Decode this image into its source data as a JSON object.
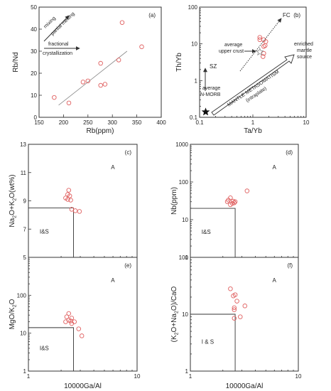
{
  "figure": {
    "font_note": ""
  },
  "chart_data": [
    {
      "id": "a",
      "type": "scatter",
      "panel_label": "(a)",
      "xlabel": "Rb(ppm)",
      "ylabel": "Rb/Nd",
      "xlim": [
        150,
        400
      ],
      "ylim": [
        0,
        50
      ],
      "xscale": "linear",
      "yscale": "linear",
      "xticks": [
        150,
        200,
        250,
        300,
        350,
        400
      ],
      "yticks": [
        0,
        10,
        20,
        30,
        40,
        50
      ],
      "points": [
        {
          "x": 181,
          "y": 9
        },
        {
          "x": 211,
          "y": 6.5
        },
        {
          "x": 240,
          "y": 16
        },
        {
          "x": 250,
          "y": 16.5
        },
        {
          "x": 276,
          "y": 24.5
        },
        {
          "x": 276,
          "y": 14.5
        },
        {
          "x": 285,
          "y": 15
        },
        {
          "x": 313,
          "y": 26
        },
        {
          "x": 320,
          "y": 43
        },
        {
          "x": 360,
          "y": 32
        }
      ],
      "trendline": {
        "x": [
          190,
          330
        ],
        "y": [
          5.5,
          30
        ]
      },
      "annotations": [
        "mixing",
        "partial melting",
        "fractional",
        "crystallization"
      ],
      "grid": false
    },
    {
      "id": "b",
      "type": "scatter",
      "panel_label": "(b)",
      "xlabel": "Ta/Yb",
      "ylabel": "Th/Yb",
      "xlim": [
        0.1,
        10
      ],
      "ylim": [
        0.1,
        100
      ],
      "xscale": "log",
      "yscale": "log",
      "xticks": [
        0.1,
        1,
        10
      ],
      "yticks": [
        0.1,
        1,
        10,
        100
      ],
      "points": [
        {
          "x": 1.35,
          "y": 15
        },
        {
          "x": 1.35,
          "y": 13
        },
        {
          "x": 1.6,
          "y": 13
        },
        {
          "x": 1.75,
          "y": 11.5
        },
        {
          "x": 1.7,
          "y": 9
        },
        {
          "x": 1.6,
          "y": 8.5
        },
        {
          "x": 1.6,
          "y": 5.5
        },
        {
          "x": 1.55,
          "y": 4.5
        }
      ],
      "reference_points": [
        {
          "name": "average upper crust",
          "x": 1.35,
          "y": 6.0,
          "symbol": "open-star"
        },
        {
          "name": "average N-MORB",
          "x": 0.13,
          "y": 0.14,
          "symbol": "filled-star"
        }
      ],
      "annotations": [
        "FC",
        "average",
        "upper crust",
        "enriched",
        "mantle",
        "source",
        "SZ",
        "average",
        "N-MORB",
        "MANTLE METASOMATISM",
        "(intraplate)"
      ],
      "grid": false
    },
    {
      "id": "c",
      "type": "scatter",
      "panel_label": "(c)",
      "xlabel": "",
      "ylabel": "Na₂O+K₂O(wt%)",
      "ylabel_parts": [
        "Na",
        "2",
        "O+K",
        "2",
        "O(wt%)"
      ],
      "xlim": [
        1,
        10
      ],
      "ylim": [
        5,
        13
      ],
      "xscale": "log",
      "yscale": "linear",
      "yticks": [
        5,
        7,
        9,
        11,
        13
      ],
      "points": [
        {
          "x": 2.35,
          "y": 9.75
        },
        {
          "x": 2.3,
          "y": 9.45
        },
        {
          "x": 2.4,
          "y": 9.35
        },
        {
          "x": 2.2,
          "y": 9.2
        },
        {
          "x": 2.3,
          "y": 9.1
        },
        {
          "x": 2.45,
          "y": 9.05
        },
        {
          "x": 2.5,
          "y": 8.4
        },
        {
          "x": 2.7,
          "y": 8.3
        },
        {
          "x": 2.95,
          "y": 8.25
        }
      ],
      "field_boundary": {
        "x": 2.6,
        "y": 8.5
      },
      "field_labels": {
        "left": "I&S",
        "right": "A"
      },
      "grid": false
    },
    {
      "id": "d",
      "type": "scatter",
      "panel_label": "(d)",
      "xlabel": "",
      "ylabel": "Nb(ppm)",
      "xlim": [
        1,
        10
      ],
      "ylim": [
        1,
        1000
      ],
      "xscale": "log",
      "yscale": "log",
      "yticks": [
        1,
        10,
        100,
        1000
      ],
      "points": [
        {
          "x": 2.35,
          "y": 38
        },
        {
          "x": 2.25,
          "y": 33
        },
        {
          "x": 2.5,
          "y": 31
        },
        {
          "x": 2.55,
          "y": 28
        },
        {
          "x": 2.45,
          "y": 27
        },
        {
          "x": 2.6,
          "y": 30
        },
        {
          "x": 2.35,
          "y": 25
        },
        {
          "x": 3.35,
          "y": 58
        },
        {
          "x": 2.2,
          "y": 30
        }
      ],
      "field_boundary": {
        "x": 2.6,
        "y": 20
      },
      "field_labels": {
        "left": "I&S",
        "right": "A"
      },
      "grid": false
    },
    {
      "id": "e",
      "type": "scatter",
      "panel_label": "(e)",
      "xlabel": "10000Ga/Al",
      "ylabel": "MgO/K₂O",
      "ylabel_parts": [
        "MgO/K",
        "2",
        "O"
      ],
      "xlim": [
        1,
        10
      ],
      "ylim": [
        1,
        1000
      ],
      "xscale": "log",
      "yscale": "log",
      "xticks": [
        1,
        10
      ],
      "yticks": [
        1,
        10,
        100
      ],
      "points": [
        {
          "x": 2.35,
          "y": 33
        },
        {
          "x": 2.25,
          "y": 27
        },
        {
          "x": 2.5,
          "y": 25
        },
        {
          "x": 2.35,
          "y": 22
        },
        {
          "x": 2.45,
          "y": 21
        },
        {
          "x": 2.65,
          "y": 20
        },
        {
          "x": 2.2,
          "y": 20
        },
        {
          "x": 2.5,
          "y": 18
        },
        {
          "x": 2.9,
          "y": 13
        },
        {
          "x": 3.1,
          "y": 8.5
        }
      ],
      "field_boundary": {
        "x": 2.6,
        "y": 14
      },
      "field_labels": {
        "left": "I&S",
        "right": "A"
      },
      "grid": false
    },
    {
      "id": "f",
      "type": "scatter",
      "panel_label": "(f)",
      "xlabel": "10000Ga/Al",
      "ylabel": "(K₂O+Na₂O)/CaO",
      "ylabel_parts": [
        "(K",
        "2",
        "O+Na",
        "2",
        "O)/CaO"
      ],
      "xlim": [
        1,
        10
      ],
      "ylim": [
        1,
        100
      ],
      "xscale": "log",
      "yscale": "log",
      "xticks": [
        1,
        10
      ],
      "yticks": [
        1,
        10,
        100
      ],
      "points": [
        {
          "x": 2.35,
          "y": 28
        },
        {
          "x": 2.6,
          "y": 22
        },
        {
          "x": 2.5,
          "y": 21
        },
        {
          "x": 2.7,
          "y": 17
        },
        {
          "x": 3.2,
          "y": 14
        },
        {
          "x": 2.55,
          "y": 13
        },
        {
          "x": 2.55,
          "y": 12
        },
        {
          "x": 2.9,
          "y": 9
        },
        {
          "x": 2.55,
          "y": 8.5
        }
      ],
      "field_boundary": {
        "x": 2.6,
        "y": 10
      },
      "field_labels": {
        "left": "I & S",
        "right": "A"
      },
      "grid": false
    }
  ]
}
